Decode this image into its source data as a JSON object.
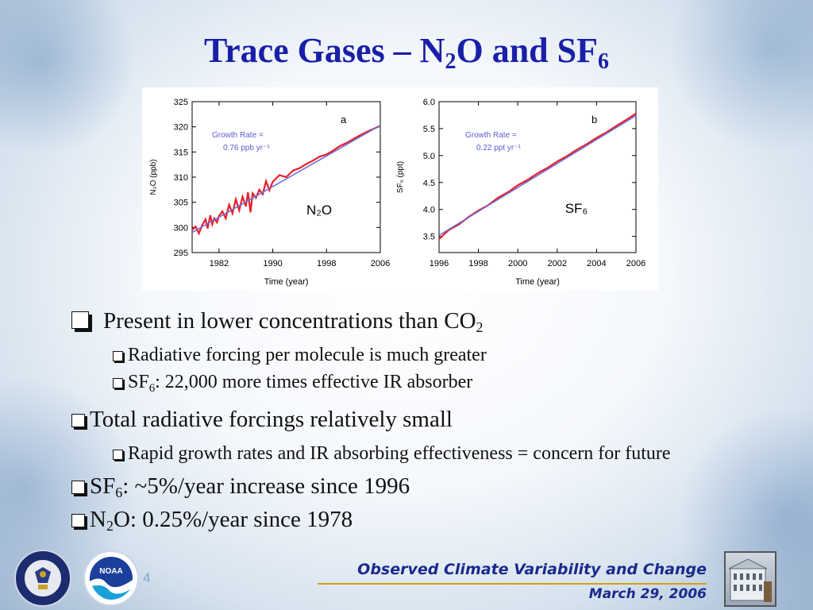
{
  "title": {
    "prefix": "Trace Gases – N",
    "sub1": "2",
    "middle": "O and SF",
    "sub2": "6"
  },
  "chart_data": [
    {
      "type": "line",
      "panel": "a",
      "label": "N₂O",
      "xlabel": "Time (year)",
      "ylabel": "N₂O (ppb)",
      "xlim": [
        1978,
        2006
      ],
      "ylim": [
        295,
        325
      ],
      "xticks": [
        1982,
        1990,
        1998,
        2006
      ],
      "yticks": [
        295,
        300,
        305,
        310,
        315,
        320,
        325
      ],
      "annotation": [
        "Growth Rate =",
        "0.76 ppb yr⁻¹"
      ],
      "series": [
        {
          "color": "#e8202a",
          "x": [
            1978.0,
            1978.5,
            1979.0,
            1979.5,
            1980.0,
            1980.3,
            1980.7,
            1981.0,
            1981.3,
            1981.7,
            1982.0,
            1982.5,
            1983.0,
            1983.5,
            1984.0,
            1984.5,
            1985.0,
            1985.5,
            1986.0,
            1986.3,
            1986.7,
            1987.0,
            1987.5,
            1988.0,
            1988.5,
            1989.0,
            1989.5,
            1990.0,
            1991.0,
            1992.0,
            1993.0,
            1994.0,
            1995.0,
            1996.0,
            1997.0,
            1998.0,
            1999.0,
            2000.0,
            2001.0,
            2002.0,
            2003.0,
            2004.0,
            2005.0,
            2006.0
          ],
          "y": [
            299.5,
            300.2,
            298.8,
            300.5,
            301.6,
            299.8,
            302.4,
            300.6,
            301.8,
            301.0,
            302.3,
            303.2,
            301.8,
            304.5,
            302.8,
            305.6,
            303.4,
            306.1,
            304.2,
            307.0,
            303.0,
            306.8,
            305.9,
            307.5,
            306.6,
            309.2,
            307.4,
            309.1,
            310.4,
            310.0,
            311.3,
            311.8,
            312.6,
            313.3,
            314.1,
            314.5,
            315.3,
            316.2,
            316.8,
            317.6,
            318.3,
            319.0,
            319.6,
            320.2
          ]
        },
        {
          "color": "#6f6fd8",
          "x": [
            1978,
            2006
          ],
          "y": [
            299.0,
            320.3
          ]
        }
      ]
    },
    {
      "type": "line",
      "panel": "b",
      "label": "SF₆",
      "xlabel": "Time (year)",
      "ylabel": "SF₆ (ppt)",
      "xlim": [
        1996,
        2006
      ],
      "ylim": [
        3.2,
        6.0
      ],
      "xticks": [
        1996,
        1998,
        2000,
        2002,
        2004,
        2006
      ],
      "yticks": [
        3.5,
        4.0,
        4.5,
        5.0,
        5.5,
        6.0
      ],
      "annotation": [
        "Growth Rate =",
        "0.22 ppt yr⁻¹"
      ],
      "series": [
        {
          "color": "#e8202a",
          "x": [
            1996.0,
            1996.5,
            1997.0,
            1997.5,
            1998.0,
            1998.5,
            1999.0,
            1999.5,
            2000.0,
            2000.5,
            2001.0,
            2001.5,
            2002.0,
            2002.5,
            2003.0,
            2003.5,
            2004.0,
            2004.5,
            2005.0,
            2005.5,
            2006.0
          ],
          "y": [
            3.45,
            3.62,
            3.72,
            3.86,
            3.98,
            4.08,
            4.22,
            4.32,
            4.45,
            4.55,
            4.67,
            4.77,
            4.89,
            4.99,
            5.11,
            5.21,
            5.33,
            5.43,
            5.55,
            5.66,
            5.78
          ]
        },
        {
          "color": "#6f6fd8",
          "x": [
            1996,
            2006
          ],
          "y": [
            3.52,
            5.74
          ]
        }
      ]
    }
  ],
  "bullets": [
    {
      "level": 1,
      "parts": [
        {
          "t": "Present in lower concentrations than CO"
        },
        {
          "sub": "2"
        }
      ],
      "large_box": true
    },
    {
      "level": 2,
      "parts": [
        {
          "t": "Radiative forcing per molecule is much greater"
        }
      ]
    },
    {
      "level": 2,
      "parts": [
        {
          "t": "SF"
        },
        {
          "sub": "6"
        },
        {
          "t": ": 22,000 more times effective IR absorber"
        }
      ]
    },
    {
      "level": 1,
      "parts": [
        {
          "t": "Total radiative forcings relatively small"
        }
      ]
    },
    {
      "level": 2,
      "parts": [
        {
          "t": "Rapid growth rates and IR absorbing effectiveness = concern for future"
        }
      ]
    },
    {
      "level": 1,
      "parts": [
        {
          "t": "SF"
        },
        {
          "sub": "6"
        },
        {
          "t": ": ~5%/year increase since 1996"
        }
      ]
    },
    {
      "level": 1,
      "parts": [
        {
          "t": "N"
        },
        {
          "sub": "2"
        },
        {
          "t": "O: 0.25%/year since 1978"
        }
      ]
    }
  ],
  "footer": {
    "title": "Observed Climate Variability and Change",
    "date": "March 29, 2006",
    "page": "4"
  },
  "logos": {
    "commerce_text": "DEPARTMENT OF COMMERCE · UNITED STATES OF AMERICA",
    "noaa_text": "NOAA"
  },
  "colors": {
    "title": "#1a1fa8",
    "footer": "#1a2a8c",
    "accent_line": "#d4a017",
    "measured": "#e8202a",
    "fit": "#6f6fd8"
  }
}
